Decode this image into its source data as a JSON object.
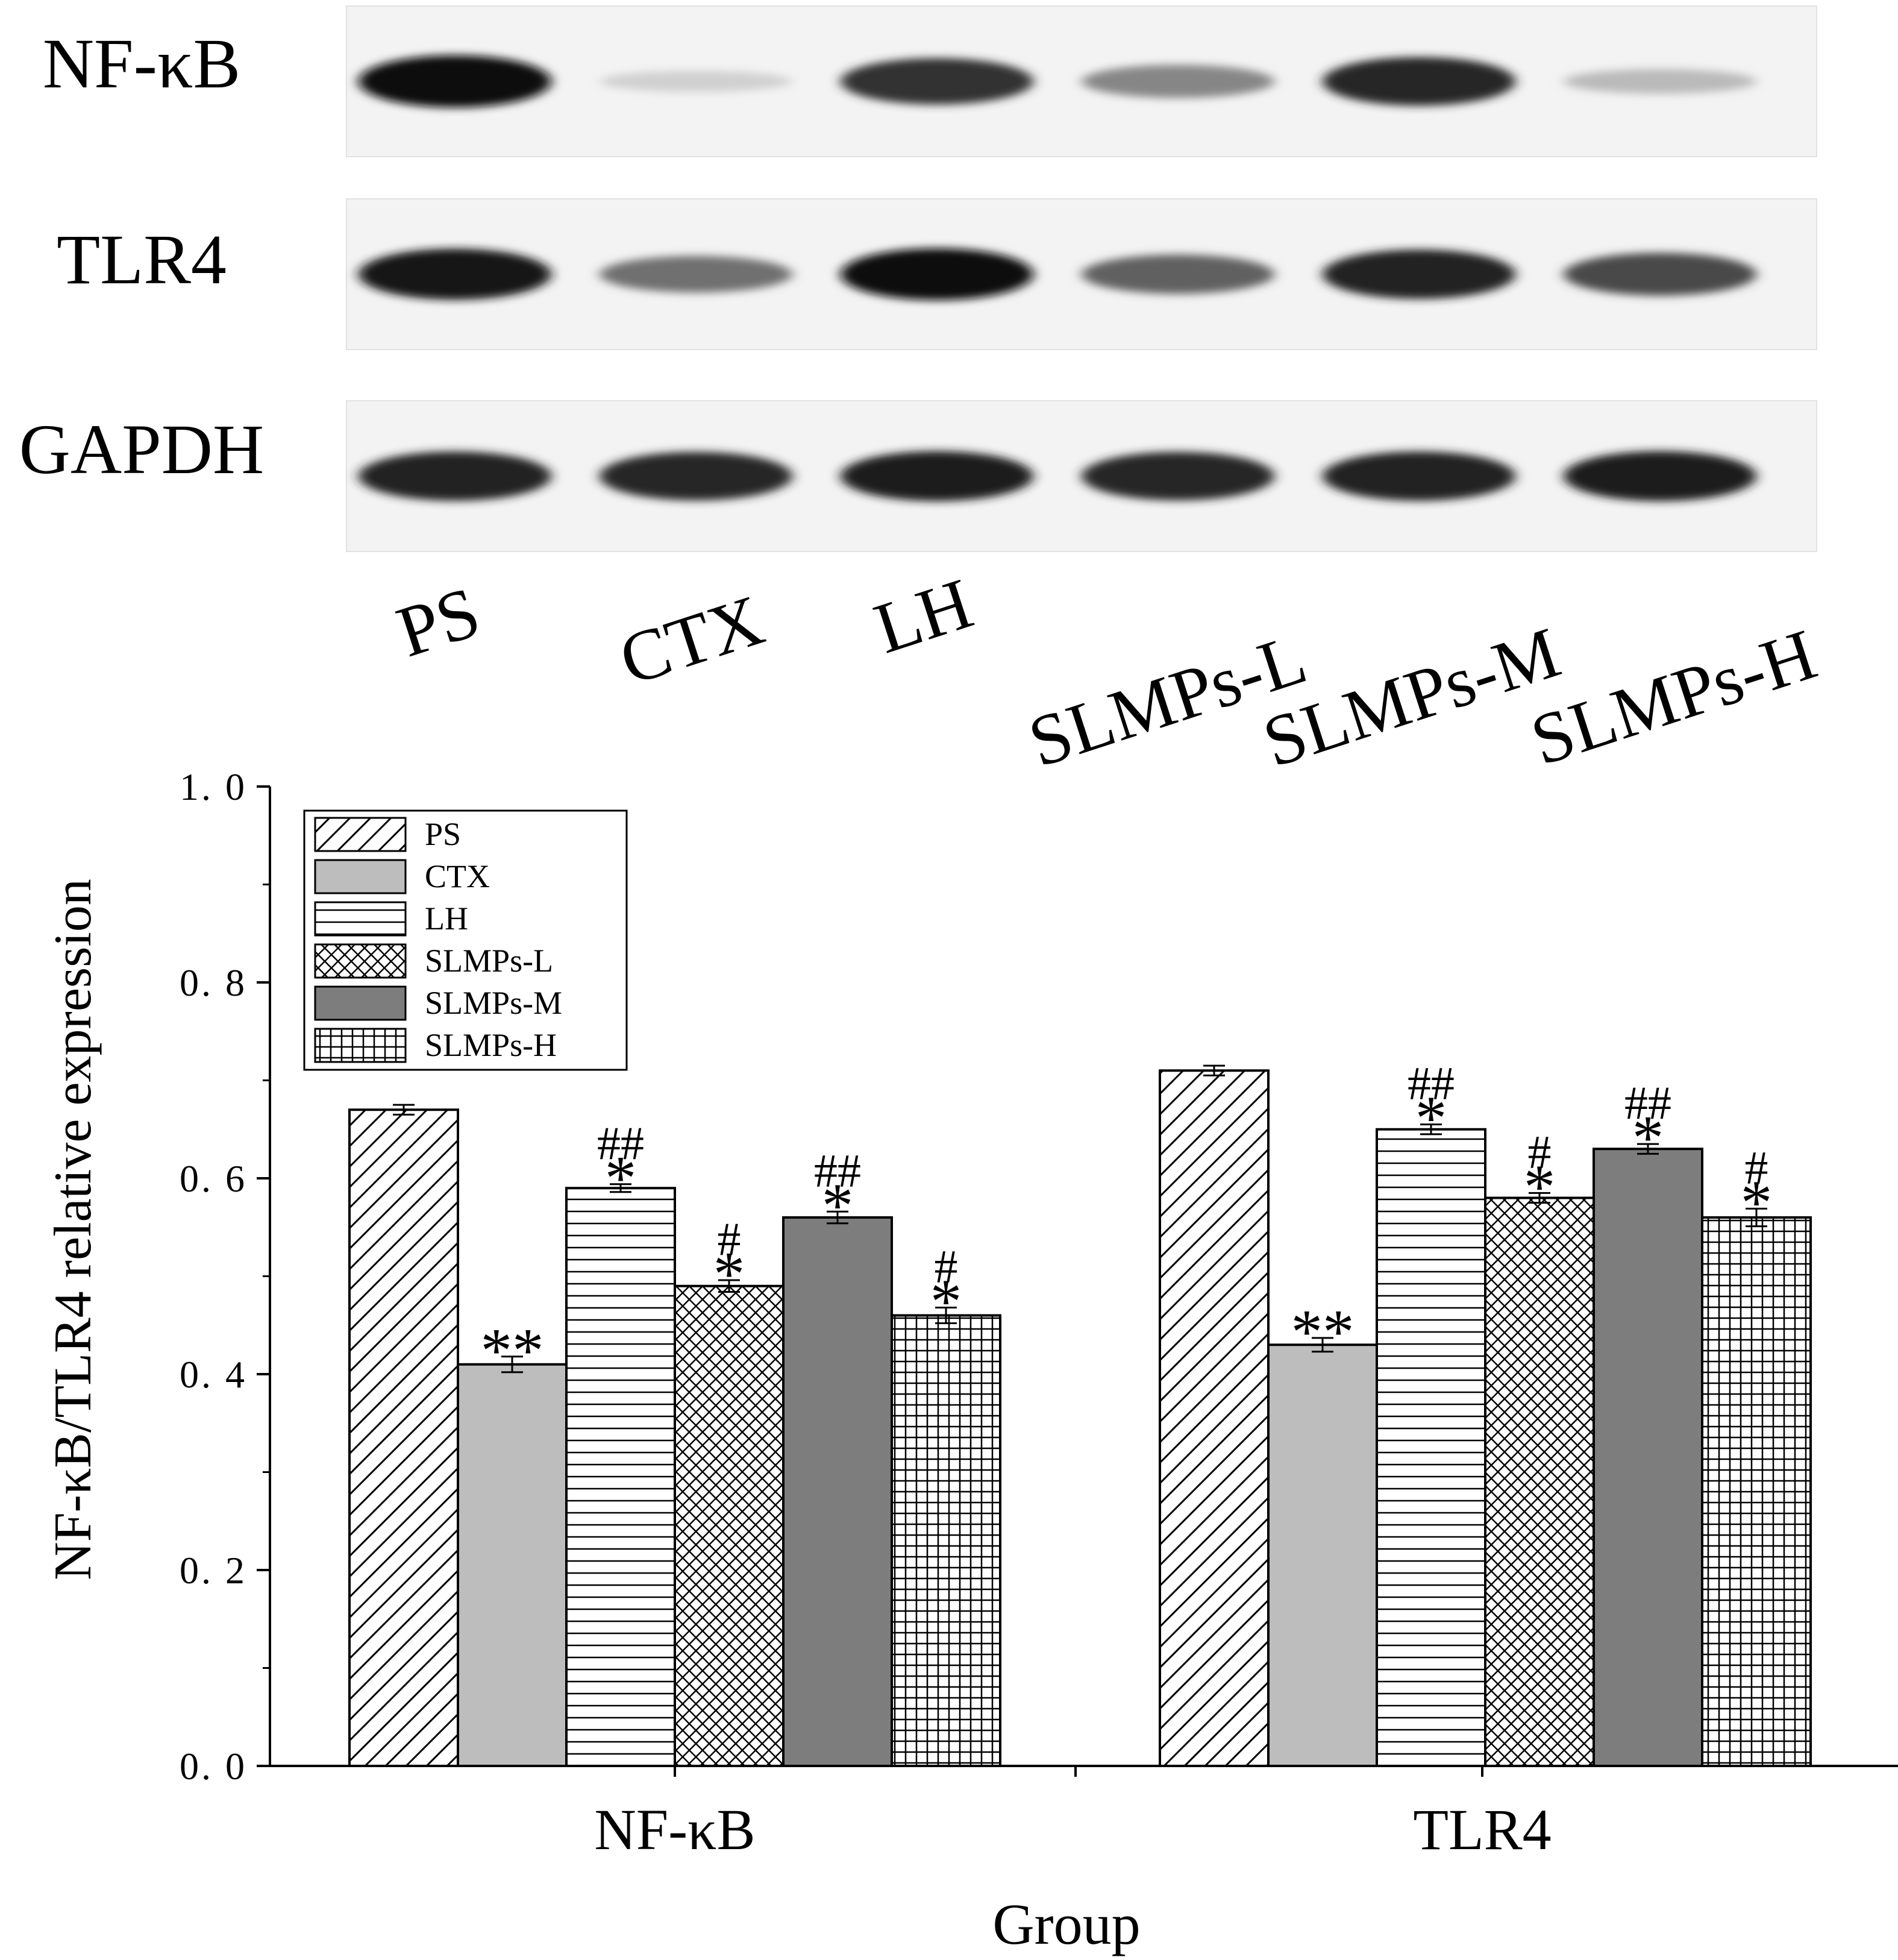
{
  "blot": {
    "rows": [
      {
        "label": "NF-κB",
        "intensities": [
          0.98,
          0.12,
          0.82,
          0.45,
          0.88,
          0.22
        ]
      },
      {
        "label": "TLR4",
        "intensities": [
          0.95,
          0.55,
          0.97,
          0.62,
          0.9,
          0.72
        ]
      },
      {
        "label": "GAPDH",
        "intensities": [
          0.9,
          0.88,
          0.92,
          0.88,
          0.9,
          0.92
        ]
      }
    ],
    "lanes": [
      "PS",
      "CTX",
      "LH",
      "SLMPs-L",
      "SLMPs-M",
      "SLMPs-H"
    ]
  },
  "chart_data": {
    "type": "bar",
    "title": "",
    "xlabel": "Group",
    "ylabel": "NF-κB/TLR4 relative expression",
    "ylim": [
      0.0,
      1.0
    ],
    "yticks": [
      "0. 0",
      "0. 2",
      "0. 4",
      "0. 6",
      "0. 8",
      "1. 0"
    ],
    "categories": [
      "NF-κB",
      "TLR4"
    ],
    "legend_position": "top-left",
    "series": [
      {
        "name": "PS",
        "pattern": "diagonal",
        "values": [
          0.67,
          0.71
        ],
        "errors": [
          0.005,
          0.005
        ],
        "annotations": [
          "",
          ""
        ]
      },
      {
        "name": "CTX",
        "pattern": "light-gray",
        "values": [
          0.41,
          0.43
        ],
        "errors": [
          0.008,
          0.007
        ],
        "annotations": [
          "**",
          "**"
        ]
      },
      {
        "name": "LH",
        "pattern": "horizontal",
        "values": [
          0.59,
          0.65
        ],
        "errors": [
          0.004,
          0.005
        ],
        "annotations": [
          "*|##",
          "*|##"
        ]
      },
      {
        "name": "SLMPs-L",
        "pattern": "crosshatch",
        "values": [
          0.49,
          0.58
        ],
        "errors": [
          0.006,
          0.005
        ],
        "annotations": [
          "*|#",
          "*|#"
        ]
      },
      {
        "name": "SLMPs-M",
        "pattern": "dark-gray",
        "values": [
          0.56,
          0.63
        ],
        "errors": [
          0.006,
          0.005
        ],
        "annotations": [
          "*|##",
          "*|##"
        ]
      },
      {
        "name": "SLMPs-H",
        "pattern": "grid",
        "values": [
          0.46,
          0.56
        ],
        "errors": [
          0.008,
          0.009
        ],
        "annotations": [
          "*|#",
          "*|#"
        ]
      }
    ]
  }
}
